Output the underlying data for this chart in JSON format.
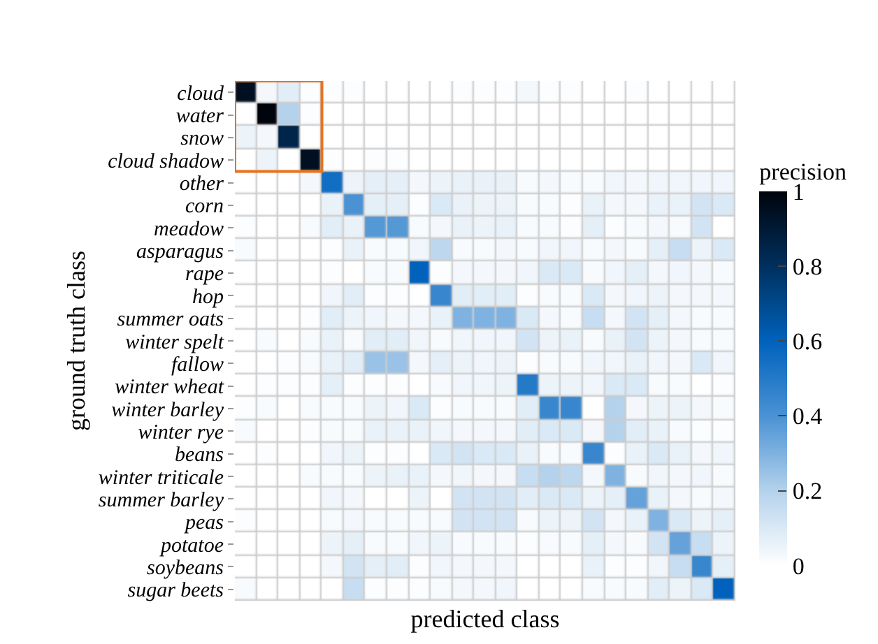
{
  "chart_data": {
    "type": "heatmap",
    "xlabel": "predicted class",
    "ylabel": "ground truth class",
    "clabel": "precision",
    "tick_labels": "y",
    "categories": [
      null,
      null,
      null,
      null,
      null,
      null,
      null,
      null,
      null,
      null,
      null,
      null,
      null,
      null,
      null,
      null,
      null,
      null,
      null,
      null,
      null,
      null,
      null
    ],
    "y_categories": [
      "cloud",
      "water",
      "snow",
      "cloud shadow",
      "other",
      "corn",
      "meadow",
      "asparagus",
      "rape",
      "hop",
      "summer oats",
      "winter spelt",
      "fallow",
      "winter wheat",
      "winter barley",
      "winter rye",
      "beans",
      "winter triticale",
      "summer barley",
      "peas",
      "potatoe",
      "soybeans",
      "sugar beets"
    ],
    "clim": [
      0,
      1
    ],
    "cticks": [
      0,
      0.2,
      0.4,
      0.6,
      0.8,
      1
    ],
    "cells": [
      [
        0.95,
        0.03,
        0.08,
        0.01,
        0.01,
        0.01,
        0,
        0,
        0,
        0,
        0.01,
        0.01,
        0.01,
        0.03,
        0.01,
        0.01,
        0,
        0,
        0.01,
        0,
        0,
        0,
        0
      ],
      [
        0,
        1,
        0.2,
        0.01,
        0,
        0,
        0,
        0,
        0,
        0,
        0,
        0,
        0,
        0,
        0,
        0,
        0,
        0,
        0,
        0,
        0,
        0,
        0
      ],
      [
        0.05,
        0.03,
        0.85,
        0,
        0,
        0,
        0,
        0,
        0,
        0,
        0,
        0,
        0,
        0,
        0,
        0,
        0,
        0,
        0,
        0,
        0,
        0,
        0
      ],
      [
        0,
        0.05,
        0,
        0.95,
        0.01,
        0,
        0.01,
        0.01,
        0,
        0,
        0,
        0,
        0,
        0,
        0,
        0,
        0,
        0,
        0,
        0,
        0,
        0,
        0
      ],
      [
        0,
        0,
        0,
        0.03,
        0.55,
        0.05,
        0.07,
        0.07,
        0.03,
        0.05,
        0.06,
        0.06,
        0.06,
        0.02,
        0.03,
        0.02,
        0.02,
        0.04,
        0.03,
        0.04,
        0.04,
        0.04,
        0.04
      ],
      [
        0,
        0,
        0,
        0,
        0.06,
        0.4,
        0.07,
        0.07,
        0.01,
        0.1,
        0.06,
        0.05,
        0.05,
        0.02,
        0.02,
        0.01,
        0.06,
        0.03,
        0.03,
        0.06,
        0.06,
        0.12,
        0.1
      ],
      [
        0.01,
        0,
        0,
        0.02,
        0.08,
        0.06,
        0.38,
        0.38,
        0.02,
        0.03,
        0.06,
        0.05,
        0.06,
        0.02,
        0.02,
        0.01,
        0.07,
        0.01,
        0.02,
        0.03,
        0.02,
        0.12,
        0
      ],
      [
        0.02,
        0,
        0,
        0,
        0.01,
        0.06,
        0.02,
        0.02,
        0.04,
        0.18,
        0.02,
        0.02,
        0.03,
        0.02,
        0.04,
        0.04,
        0.02,
        0.03,
        0.02,
        0.07,
        0.15,
        0.05,
        0.1
      ],
      [
        0,
        0,
        0,
        0,
        0.01,
        0,
        0.02,
        0.02,
        0.6,
        0.01,
        0.03,
        0.03,
        0.03,
        0.04,
        0.1,
        0.1,
        0.02,
        0.04,
        0.07,
        0.03,
        0.04,
        0.03,
        0.02
      ],
      [
        0,
        0,
        0,
        0,
        0.04,
        0.08,
        0.01,
        0.01,
        0,
        0.45,
        0.08,
        0.08,
        0.08,
        0.01,
        0.02,
        0.02,
        0.1,
        0.03,
        0.04,
        0.05,
        0.03,
        0.03,
        0.03
      ],
      [
        0,
        0,
        0,
        0.01,
        0.08,
        0.05,
        0.04,
        0.03,
        0.03,
        0.06,
        0.3,
        0.3,
        0.3,
        0.1,
        0.03,
        0.02,
        0.15,
        0.03,
        0.12,
        0.07,
        0.03,
        0.02,
        0.02
      ],
      [
        0,
        0.02,
        0,
        0.02,
        0.06,
        0.02,
        0.08,
        0.08,
        0.04,
        0.02,
        0.04,
        0.04,
        0.04,
        0.12,
        0.05,
        0.06,
        0.02,
        0.06,
        0.12,
        0.05,
        0.03,
        0.02,
        0.02
      ],
      [
        0,
        0,
        0.01,
        0.02,
        0.06,
        0.08,
        0.25,
        0.25,
        0.03,
        0.07,
        0.05,
        0.04,
        0.05,
        0.01,
        0.02,
        0.02,
        0.04,
        0.04,
        0.06,
        0.04,
        0.03,
        0.1,
        0.04
      ],
      [
        0,
        0.01,
        0.01,
        0.01,
        0.07,
        0.01,
        0.01,
        0.01,
        0,
        0.02,
        0.04,
        0.04,
        0.05,
        0.5,
        0.05,
        0.05,
        0.04,
        0.1,
        0.1,
        0.02,
        0.02,
        0,
        0.01
      ],
      [
        0.01,
        0.02,
        0,
        0.02,
        0.02,
        0.02,
        0.05,
        0.04,
        0.1,
        0.01,
        0.02,
        0.02,
        0.02,
        0.08,
        0.45,
        0.45,
        0,
        0.2,
        0.03,
        0.05,
        0.05,
        0.03,
        0.02
      ],
      [
        0.02,
        0,
        0,
        0.01,
        0.02,
        0.02,
        0.06,
        0.06,
        0.06,
        0.04,
        0.03,
        0.03,
        0.03,
        0.08,
        0.1,
        0.1,
        0.03,
        0.2,
        0.08,
        0.06,
        0.02,
        0.01,
        0.01
      ],
      [
        0,
        0.01,
        0,
        0,
        0.04,
        0.05,
        0.01,
        0.01,
        0,
        0.1,
        0.12,
        0.1,
        0.1,
        0.06,
        0.02,
        0.02,
        0.45,
        0.01,
        0.06,
        0.1,
        0.06,
        0.03,
        0.04
      ],
      [
        0,
        0,
        0,
        0.02,
        0.02,
        0.02,
        0.05,
        0.06,
        0.06,
        0.03,
        0.04,
        0.03,
        0.03,
        0.15,
        0.2,
        0.18,
        0.03,
        0.3,
        0.02,
        0.04,
        0.03,
        0.04,
        0.02
      ],
      [
        0,
        0,
        0,
        0,
        0.04,
        0.03,
        0,
        0,
        0.05,
        0,
        0.12,
        0.12,
        0.12,
        0.08,
        0.1,
        0.1,
        0.05,
        0.07,
        0.35,
        0.06,
        0.03,
        0.02,
        0.03
      ],
      [
        0.01,
        0,
        0,
        0,
        0.02,
        0.03,
        0.02,
        0.02,
        0.02,
        0.02,
        0.12,
        0.12,
        0.12,
        0.02,
        0.05,
        0.05,
        0.12,
        0.03,
        0.06,
        0.3,
        0.1,
        0.05,
        0.07
      ],
      [
        0,
        0,
        0,
        0,
        0.05,
        0.07,
        0.02,
        0.02,
        0.04,
        0.05,
        0.02,
        0.02,
        0.02,
        0.01,
        0.02,
        0.02,
        0.07,
        0.03,
        0.02,
        0.12,
        0.35,
        0.15,
        0.05
      ],
      [
        0,
        0,
        0,
        0,
        0.03,
        0.12,
        0.07,
        0.08,
        0.01,
        0.04,
        0.03,
        0.03,
        0.03,
        0,
        0,
        0,
        0.06,
        0.01,
        0.01,
        0.04,
        0.15,
        0.45,
        0.07
      ],
      [
        0.02,
        0,
        0,
        0,
        0,
        0.15,
        0.01,
        0.01,
        0.01,
        0.02,
        0.03,
        0.03,
        0.04,
        0,
        0,
        0,
        0.02,
        0.02,
        0.02,
        0.08,
        0.05,
        0.1,
        0.6
      ]
    ]
  }
}
